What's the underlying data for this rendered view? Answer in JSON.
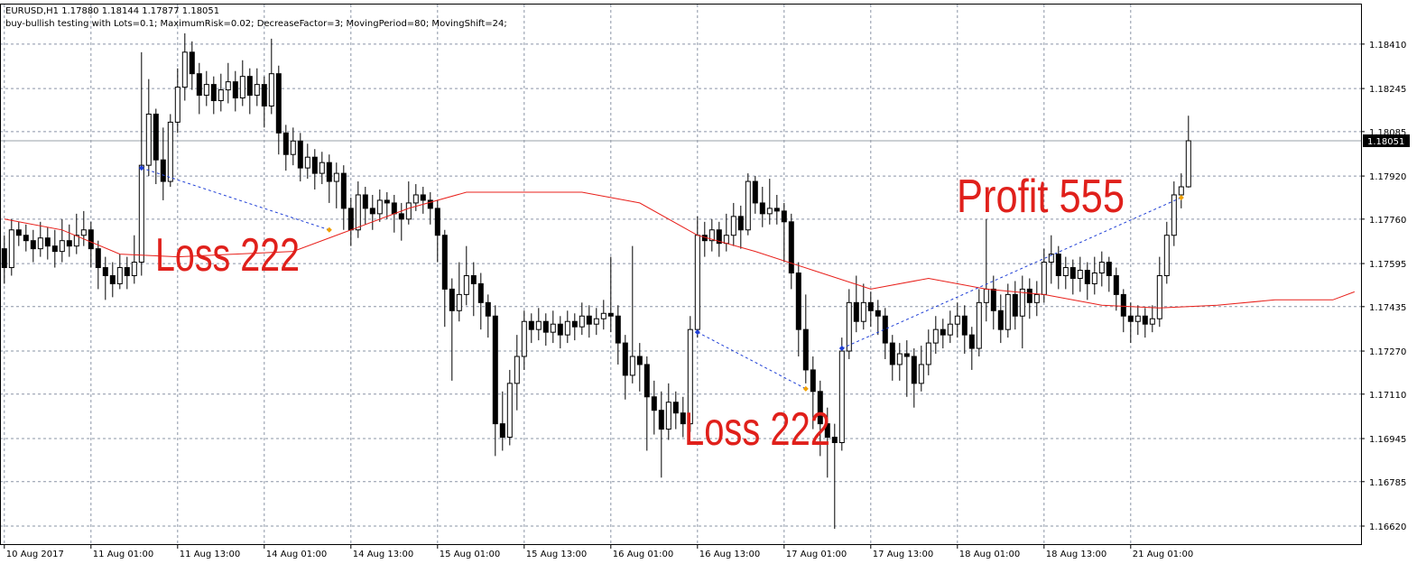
{
  "chart_data": {
    "type": "candlestick",
    "title": "EURUSD,H1  1.17880 1.18144 1.17877 1.18051",
    "subtitle": "buy-bullish testing with Lots=0.1; MaximumRisk=0.02; DecreaseFactor=3; MovingPeriod=80; MovingShift=24;",
    "xlim": [
      -0.6,
      187.9
    ],
    "ylim": [
      1.16553,
      1.18557
    ],
    "grid": true,
    "yticks": [
      {
        "value": 1.1841,
        "label": "1.18410"
      },
      {
        "value": 1.18245,
        "label": "1.18245"
      },
      {
        "value": 1.18085,
        "label": "1.18085"
      },
      {
        "value": 1.1792,
        "label": "1.17920"
      },
      {
        "value": 1.1776,
        "label": "1.17760"
      },
      {
        "value": 1.17595,
        "label": "1.17595"
      },
      {
        "value": 1.17435,
        "label": "1.17435"
      },
      {
        "value": 1.1727,
        "label": "1.17270"
      },
      {
        "value": 1.1711,
        "label": "1.17110"
      },
      {
        "value": 1.16945,
        "label": "1.16945"
      },
      {
        "value": 1.16785,
        "label": "1.16785"
      },
      {
        "value": 1.1662,
        "label": "1.16620"
      }
    ],
    "xticks": [
      {
        "value": 0,
        "label": "10 Aug 2017"
      },
      {
        "value": 12,
        "label": "11 Aug 01:00"
      },
      {
        "value": 24,
        "label": "11 Aug 13:00"
      },
      {
        "value": 36,
        "label": "14 Aug 01:00"
      },
      {
        "value": 48,
        "label": "14 Aug 13:00"
      },
      {
        "value": 60,
        "label": "15 Aug 01:00"
      },
      {
        "value": 72,
        "label": "15 Aug 13:00"
      },
      {
        "value": 84,
        "label": "16 Aug 01:00"
      },
      {
        "value": 96,
        "label": "16 Aug 13:00"
      },
      {
        "value": 108,
        "label": "17 Aug 01:00"
      },
      {
        "value": 120,
        "label": "17 Aug 13:00"
      },
      {
        "value": 132,
        "label": "18 Aug 01:00"
      },
      {
        "value": 144,
        "label": "18 Aug 13:00"
      },
      {
        "value": 156,
        "label": "21 Aug 01:00"
      }
    ],
    "current_price": {
      "value": 1.18051,
      "label": "1.18051"
    },
    "candles": {
      "open": [
        1.1765,
        1.1758,
        1.1772,
        1.177,
        1.1768,
        1.1765,
        1.1769,
        1.1766,
        1.1764,
        1.1768,
        1.1766,
        1.177,
        1.1772,
        1.1765,
        1.1758,
        1.1755,
        1.1752,
        1.1758,
        1.1755,
        1.176,
        1.1796,
        1.1815,
        1.1798,
        1.179,
        1.1812,
        1.1825,
        1.1838,
        1.183,
        1.1822,
        1.1826,
        1.182,
        1.1824,
        1.1827,
        1.1821,
        1.1829,
        1.1822,
        1.1826,
        1.1818,
        1.183,
        1.1808,
        1.18,
        1.1805,
        1.1795,
        1.1799,
        1.1793,
        1.1797,
        1.179,
        1.1793,
        1.178,
        1.1772,
        1.1785,
        1.178,
        1.1778,
        1.1783,
        1.1782,
        1.1778,
        1.1776,
        1.1782,
        1.1785,
        1.1783,
        1.178,
        1.177,
        1.175,
        1.1742,
        1.1748,
        1.1755,
        1.1752,
        1.1745,
        1.174,
        1.17,
        1.1695,
        1.1715,
        1.1725,
        1.1738,
        1.1735,
        1.1738,
        1.1734,
        1.1737,
        1.1733,
        1.1738,
        1.1736,
        1.174,
        1.1737,
        1.1739,
        1.1741,
        1.174,
        1.173,
        1.1718,
        1.1725,
        1.1722,
        1.171,
        1.1705,
        1.1698,
        1.1708,
        1.1704,
        1.17,
        1.1735,
        1.177,
        1.1768,
        1.1772,
        1.1767,
        1.177,
        1.1777,
        1.1772,
        1.179,
        1.1782,
        1.1778,
        1.178,
        1.1779,
        1.1775,
        1.1756,
        1.1735,
        1.172,
        1.1712,
        1.17,
        1.1695,
        1.1693,
        1.1727,
        1.1745,
        1.1738,
        1.1745,
        1.1742,
        1.174,
        1.173,
        1.1722,
        1.1726,
        1.1725,
        1.1715,
        1.1722,
        1.173,
        1.1735,
        1.1733,
        1.1737,
        1.174,
        1.1733,
        1.1728,
        1.1745,
        1.175,
        1.1742,
        1.1735,
        1.1748,
        1.174,
        1.175,
        1.1745,
        1.1748,
        1.176,
        1.1763,
        1.1755,
        1.1758,
        1.1754,
        1.1757,
        1.1752,
        1.1756,
        1.176,
        1.1755,
        1.1748,
        1.174,
        1.1738,
        1.174,
        1.1737,
        1.1739,
        1.1755,
        1.177,
        1.1785,
        1.1788
      ],
      "high": [
        1.177,
        1.1776,
        1.1775,
        1.1774,
        1.1772,
        1.1775,
        1.1773,
        1.1772,
        1.1776,
        1.1774,
        1.1778,
        1.1779,
        1.1775,
        1.1768,
        1.1762,
        1.176,
        1.1763,
        1.1762,
        1.177,
        1.1838,
        1.1828,
        1.1817,
        1.181,
        1.1815,
        1.1832,
        1.1845,
        1.1842,
        1.1834,
        1.1831,
        1.1829,
        1.183,
        1.1834,
        1.1831,
        1.1835,
        1.1832,
        1.1832,
        1.1829,
        1.1843,
        1.1833,
        1.1811,
        1.181,
        1.1808,
        1.1804,
        1.1802,
        1.1801,
        1.18,
        1.1797,
        1.1796,
        1.1784,
        1.179,
        1.1788,
        1.1785,
        1.1787,
        1.1786,
        1.1785,
        1.1782,
        1.179,
        1.1789,
        1.1788,
        1.1786,
        1.1783,
        1.1772,
        1.1754,
        1.176,
        1.1766,
        1.176,
        1.1756,
        1.1748,
        1.1744,
        1.1712,
        1.172,
        1.1733,
        1.1742,
        1.1741,
        1.1743,
        1.1741,
        1.1742,
        1.174,
        1.1742,
        1.1741,
        1.1745,
        1.1744,
        1.1743,
        1.1746,
        1.1762,
        1.1744,
        1.1733,
        1.1766,
        1.173,
        1.1725,
        1.1716,
        1.1712,
        1.1715,
        1.1712,
        1.171,
        1.174,
        1.1777,
        1.1775,
        1.1776,
        1.1775,
        1.1778,
        1.1782,
        1.1781,
        1.1793,
        1.1792,
        1.1788,
        1.1791,
        1.1785,
        1.1782,
        1.1778,
        1.176,
        1.1748,
        1.1725,
        1.1716,
        1.1706,
        1.17,
        1.1732,
        1.175,
        1.1755,
        1.1752,
        1.1749,
        1.1746,
        1.1743,
        1.1733,
        1.173,
        1.1731,
        1.1728,
        1.1729,
        1.1735,
        1.174,
        1.1739,
        1.1742,
        1.1745,
        1.1744,
        1.1736,
        1.175,
        1.1776,
        1.1755,
        1.1748,
        1.1752,
        1.1753,
        1.1755,
        1.1754,
        1.1753,
        1.1765,
        1.177,
        1.1766,
        1.1762,
        1.1761,
        1.1762,
        1.176,
        1.1762,
        1.1764,
        1.1762,
        1.1758,
        1.175,
        1.1745,
        1.1744,
        1.1743,
        1.1744,
        1.1762,
        1.1775,
        1.179,
        1.1793,
        1.18144
      ],
      "low": [
        1.1752,
        1.1755,
        1.1766,
        1.1764,
        1.176,
        1.1762,
        1.1761,
        1.1758,
        1.176,
        1.1762,
        1.1763,
        1.1766,
        1.1758,
        1.175,
        1.1746,
        1.1747,
        1.175,
        1.175,
        1.1752,
        1.1755,
        1.1792,
        1.1789,
        1.1783,
        1.1788,
        1.1808,
        1.182,
        1.1824,
        1.1815,
        1.1818,
        1.1815,
        1.1816,
        1.1819,
        1.1816,
        1.1818,
        1.1815,
        1.1818,
        1.181,
        1.1815,
        1.18,
        1.1794,
        1.1796,
        1.179,
        1.1791,
        1.1787,
        1.1789,
        1.1782,
        1.178,
        1.1772,
        1.1766,
        1.1769,
        1.1774,
        1.1772,
        1.1775,
        1.1776,
        1.1771,
        1.1768,
        1.1774,
        1.1779,
        1.1778,
        1.1774,
        1.176,
        1.1736,
        1.1716,
        1.1738,
        1.1744,
        1.174,
        1.1735,
        1.1732,
        1.1688,
        1.169,
        1.1692,
        1.1705,
        1.172,
        1.173,
        1.1731,
        1.1729,
        1.173,
        1.1728,
        1.173,
        1.1731,
        1.1733,
        1.1732,
        1.1733,
        1.1735,
        1.1734,
        1.1722,
        1.1709,
        1.1715,
        1.1712,
        1.169,
        1.1696,
        1.168,
        1.1694,
        1.1698,
        1.1695,
        1.1697,
        1.1732,
        1.1762,
        1.1764,
        1.1762,
        1.1764,
        1.1766,
        1.1765,
        1.177,
        1.1778,
        1.1773,
        1.1774,
        1.1774,
        1.176,
        1.175,
        1.1725,
        1.1715,
        1.1698,
        1.1688,
        1.168,
        1.1661,
        1.169,
        1.1724,
        1.1734,
        1.1735,
        1.1736,
        1.1733,
        1.1724,
        1.1716,
        1.1716,
        1.171,
        1.1706,
        1.1712,
        1.1718,
        1.1726,
        1.1728,
        1.173,
        1.1732,
        1.1726,
        1.172,
        1.1725,
        1.1738,
        1.1735,
        1.173,
        1.1732,
        1.1735,
        1.1728,
        1.1739,
        1.174,
        1.1745,
        1.1752,
        1.175,
        1.175,
        1.1748,
        1.1749,
        1.1746,
        1.1748,
        1.1751,
        1.1749,
        1.1742,
        1.1734,
        1.173,
        1.1733,
        1.1732,
        1.1734,
        1.1736,
        1.1752,
        1.1766,
        1.178,
        1.17877
      ],
      "close": [
        1.1758,
        1.1772,
        1.177,
        1.1768,
        1.1765,
        1.1769,
        1.1766,
        1.1764,
        1.1768,
        1.1766,
        1.177,
        1.1772,
        1.1765,
        1.1758,
        1.1755,
        1.1752,
        1.1758,
        1.1755,
        1.176,
        1.1796,
        1.1815,
        1.1798,
        1.179,
        1.1812,
        1.1825,
        1.1838,
        1.183,
        1.1822,
        1.1826,
        1.182,
        1.1824,
        1.1827,
        1.1821,
        1.1829,
        1.1822,
        1.1826,
        1.1818,
        1.183,
        1.1808,
        1.18,
        1.1805,
        1.1795,
        1.1799,
        1.1793,
        1.1797,
        1.179,
        1.1793,
        1.178,
        1.1772,
        1.1785,
        1.178,
        1.1778,
        1.1783,
        1.1782,
        1.1778,
        1.1776,
        1.1782,
        1.1785,
        1.1783,
        1.178,
        1.177,
        1.175,
        1.1742,
        1.1748,
        1.1755,
        1.1752,
        1.1745,
        1.174,
        1.17,
        1.1695,
        1.1715,
        1.1725,
        1.1738,
        1.1735,
        1.1738,
        1.1734,
        1.1737,
        1.1733,
        1.1738,
        1.1736,
        1.174,
        1.1737,
        1.1739,
        1.1741,
        1.174,
        1.173,
        1.1718,
        1.1725,
        1.1722,
        1.171,
        1.1705,
        1.1698,
        1.1708,
        1.1704,
        1.17,
        1.1735,
        1.177,
        1.1768,
        1.1772,
        1.1767,
        1.177,
        1.1777,
        1.1772,
        1.179,
        1.1782,
        1.1778,
        1.178,
        1.1779,
        1.1775,
        1.1756,
        1.1735,
        1.172,
        1.1712,
        1.17,
        1.1695,
        1.1693,
        1.1727,
        1.1745,
        1.1738,
        1.1745,
        1.1742,
        1.174,
        1.173,
        1.1722,
        1.1726,
        1.1725,
        1.1715,
        1.1722,
        1.173,
        1.1735,
        1.1733,
        1.1737,
        1.174,
        1.1733,
        1.1728,
        1.1745,
        1.175,
        1.1742,
        1.1735,
        1.1748,
        1.174,
        1.175,
        1.1745,
        1.1748,
        1.176,
        1.1763,
        1.1755,
        1.1758,
        1.1754,
        1.1757,
        1.1752,
        1.1756,
        1.176,
        1.1755,
        1.1748,
        1.174,
        1.1738,
        1.174,
        1.1737,
        1.1739,
        1.1755,
        1.177,
        1.1785,
        1.1788,
        1.18051
      ]
    },
    "moving_average": {
      "color": "#e8201b",
      "x": [
        0,
        8,
        16,
        24,
        32,
        40,
        48,
        56,
        64,
        72,
        80,
        88,
        96,
        104,
        112,
        120,
        128,
        136,
        144,
        152,
        160,
        168,
        176,
        184,
        187
      ],
      "values": [
        1.1776,
        1.1772,
        1.1763,
        1.1762,
        1.1763,
        1.1764,
        1.1772,
        1.178,
        1.1786,
        1.1786,
        1.1786,
        1.1782,
        1.177,
        1.1764,
        1.1757,
        1.175,
        1.1754,
        1.175,
        1.1748,
        1.1744,
        1.1743,
        1.1744,
        1.1746,
        1.1746,
        1.1749
      ]
    },
    "trades": [
      {
        "open_index": 19,
        "open_price": 1.1795,
        "close_index": 45,
        "close_price": 1.1772,
        "label": "Loss 222"
      },
      {
        "open_index": 96,
        "open_price": 1.1734,
        "close_index": 111,
        "close_price": 1.1713,
        "label": "Loss 222"
      },
      {
        "open_index": 116,
        "open_price": 1.1728,
        "close_index": 163,
        "close_price": 1.1784,
        "label": "Profit 555"
      }
    ]
  }
}
